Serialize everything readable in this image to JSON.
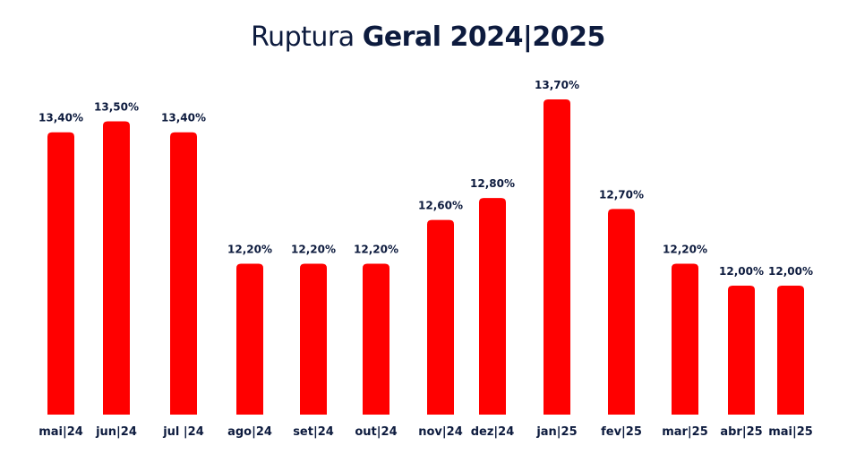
{
  "title": {
    "light": "Ruptura",
    "bold": "Geral 2024|2025"
  },
  "colors": {
    "bar": "#ff0000",
    "text": "#0d1b3e"
  },
  "chart_data": {
    "type": "bar",
    "title": "Ruptura Geral 2024|2025",
    "categories": [
      "mai|24",
      "jun|24",
      "jul |24",
      "ago|24",
      "set|24",
      "out|24",
      "nov|24",
      "dez|24",
      "jan|25",
      "fev|25",
      "mar|25",
      "abr|25",
      "mai|25"
    ],
    "values": [
      13.4,
      13.5,
      13.4,
      12.2,
      12.2,
      12.2,
      12.6,
      12.8,
      13.7,
      12.7,
      12.2,
      12.0,
      12.0
    ],
    "value_labels": [
      "13,40%",
      "13,50%",
      "13,40%",
      "12,20%",
      "12,20%",
      "12,20%",
      "12,60%",
      "12,80%",
      "13,70%",
      "12,70%",
      "12,20%",
      "12,00%",
      "12,00%"
    ],
    "grid": false,
    "legend": "none"
  }
}
